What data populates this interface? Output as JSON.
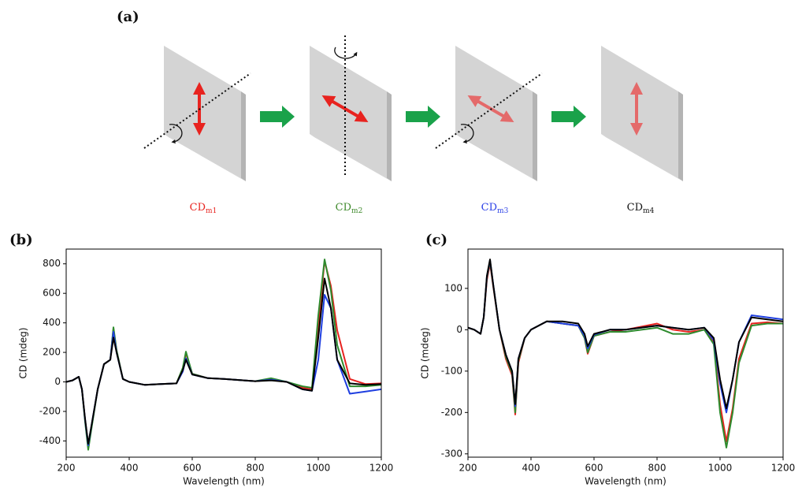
{
  "diagram": {
    "panel_label": "(a)",
    "items": [
      {
        "label": "CD",
        "subscript": "m1",
        "color": "#e8231f"
      },
      {
        "label": "CD",
        "subscript": "m2",
        "color": "#3f8a2c"
      },
      {
        "label": "CD",
        "subscript": "m3",
        "color": "#2a3fe6"
      },
      {
        "label": "CD",
        "subscript": "m4",
        "color": "#111111"
      }
    ]
  },
  "chart_data": [
    {
      "type": "line",
      "panel_label": "(b)",
      "xlabel": "Wavelength (nm)",
      "ylabel": "CD (mdeg)",
      "xlim": [
        200,
        1200
      ],
      "ylim": [
        -510,
        900
      ],
      "xticks": [
        200,
        400,
        600,
        800,
        1000,
        1200
      ],
      "yticks": [
        -400,
        -200,
        0,
        200,
        400,
        600,
        800
      ],
      "x": [
        200,
        220,
        240,
        250,
        260,
        270,
        280,
        300,
        320,
        340,
        350,
        360,
        380,
        400,
        450,
        500,
        550,
        570,
        580,
        600,
        650,
        700,
        800,
        850,
        900,
        950,
        980,
        1000,
        1020,
        1040,
        1060,
        1100,
        1150,
        1200
      ],
      "series": [
        {
          "name": "CDm1",
          "color": "#e8231f",
          "values": [
            0,
            10,
            35,
            -50,
            -260,
            -440,
            -310,
            -50,
            120,
            150,
            360,
            210,
            20,
            0,
            -20,
            -15,
            -10,
            90,
            195,
            55,
            25,
            20,
            5,
            15,
            0,
            -40,
            -50,
            380,
            820,
            650,
            350,
            20,
            -15,
            -10
          ]
        },
        {
          "name": "CDm2",
          "color": "#2e8b2e",
          "values": [
            0,
            10,
            35,
            -50,
            -270,
            -460,
            -320,
            -50,
            120,
            150,
            370,
            215,
            20,
            0,
            -20,
            -15,
            -10,
            95,
            205,
            55,
            25,
            20,
            5,
            25,
            0,
            -30,
            -40,
            450,
            830,
            620,
            250,
            -30,
            -30,
            -20
          ]
        },
        {
          "name": "CDm3",
          "color": "#1f3fe0",
          "values": [
            0,
            10,
            35,
            -50,
            -255,
            -430,
            -300,
            -50,
            120,
            150,
            340,
            200,
            20,
            0,
            -20,
            -15,
            -10,
            70,
            160,
            50,
            25,
            20,
            5,
            15,
            0,
            -50,
            -60,
            150,
            590,
            500,
            150,
            -80,
            -65,
            -50
          ]
        },
        {
          "name": "CDm4",
          "color": "#000000",
          "values": [
            0,
            10,
            35,
            -50,
            -250,
            -420,
            -300,
            -50,
            120,
            150,
            300,
            200,
            20,
            0,
            -20,
            -15,
            -10,
            80,
            150,
            50,
            25,
            20,
            5,
            10,
            0,
            -50,
            -60,
            300,
            700,
            500,
            150,
            -10,
            -20,
            -15
          ]
        }
      ]
    },
    {
      "type": "line",
      "panel_label": "(c)",
      "xlabel": "Wavelength (nm)",
      "ylabel": "CD (mdeg)",
      "xlim": [
        200,
        1200
      ],
      "ylim": [
        -308,
        195
      ],
      "xticks": [
        200,
        400,
        600,
        800,
        1000,
        1200
      ],
      "yticks": [
        -300,
        -200,
        -100,
        0,
        100
      ],
      "x": [
        200,
        220,
        240,
        250,
        260,
        270,
        280,
        300,
        320,
        340,
        350,
        360,
        380,
        400,
        450,
        500,
        550,
        570,
        580,
        600,
        650,
        700,
        800,
        850,
        900,
        950,
        980,
        1000,
        1020,
        1040,
        1060,
        1100,
        1150,
        1200
      ],
      "series": [
        {
          "name": "CDm1",
          "color": "#e8231f",
          "values": [
            5,
            0,
            -10,
            30,
            120,
            160,
            105,
            0,
            -70,
            -110,
            -205,
            -80,
            -20,
            0,
            20,
            15,
            10,
            -20,
            -58,
            -15,
            -5,
            0,
            15,
            0,
            -5,
            0,
            -30,
            -180,
            -270,
            -190,
            -70,
            15,
            18,
            15
          ]
        },
        {
          "name": "CDm2",
          "color": "#2e8b2e",
          "values": [
            5,
            0,
            -10,
            30,
            125,
            165,
            108,
            0,
            -65,
            -105,
            -200,
            -75,
            -20,
            0,
            20,
            15,
            10,
            -20,
            -55,
            -15,
            -5,
            -5,
            5,
            -10,
            -10,
            0,
            -35,
            -200,
            -285,
            -200,
            -80,
            10,
            15,
            15
          ]
        },
        {
          "name": "CDm3",
          "color": "#1f3fe0",
          "values": [
            5,
            0,
            -10,
            30,
            128,
            168,
            110,
            0,
            -60,
            -100,
            -185,
            -70,
            -20,
            0,
            20,
            15,
            10,
            -15,
            -45,
            -12,
            0,
            0,
            10,
            5,
            0,
            5,
            -25,
            -130,
            -200,
            -120,
            -30,
            35,
            30,
            25
          ]
        },
        {
          "name": "CDm4",
          "color": "#000000",
          "values": [
            5,
            0,
            -10,
            30,
            130,
            170,
            110,
            0,
            -60,
            -100,
            -180,
            -70,
            -20,
            0,
            20,
            20,
            15,
            -10,
            -40,
            -10,
            0,
            0,
            10,
            5,
            0,
            5,
            -20,
            -120,
            -190,
            -120,
            -30,
            30,
            25,
            20
          ]
        }
      ]
    }
  ]
}
